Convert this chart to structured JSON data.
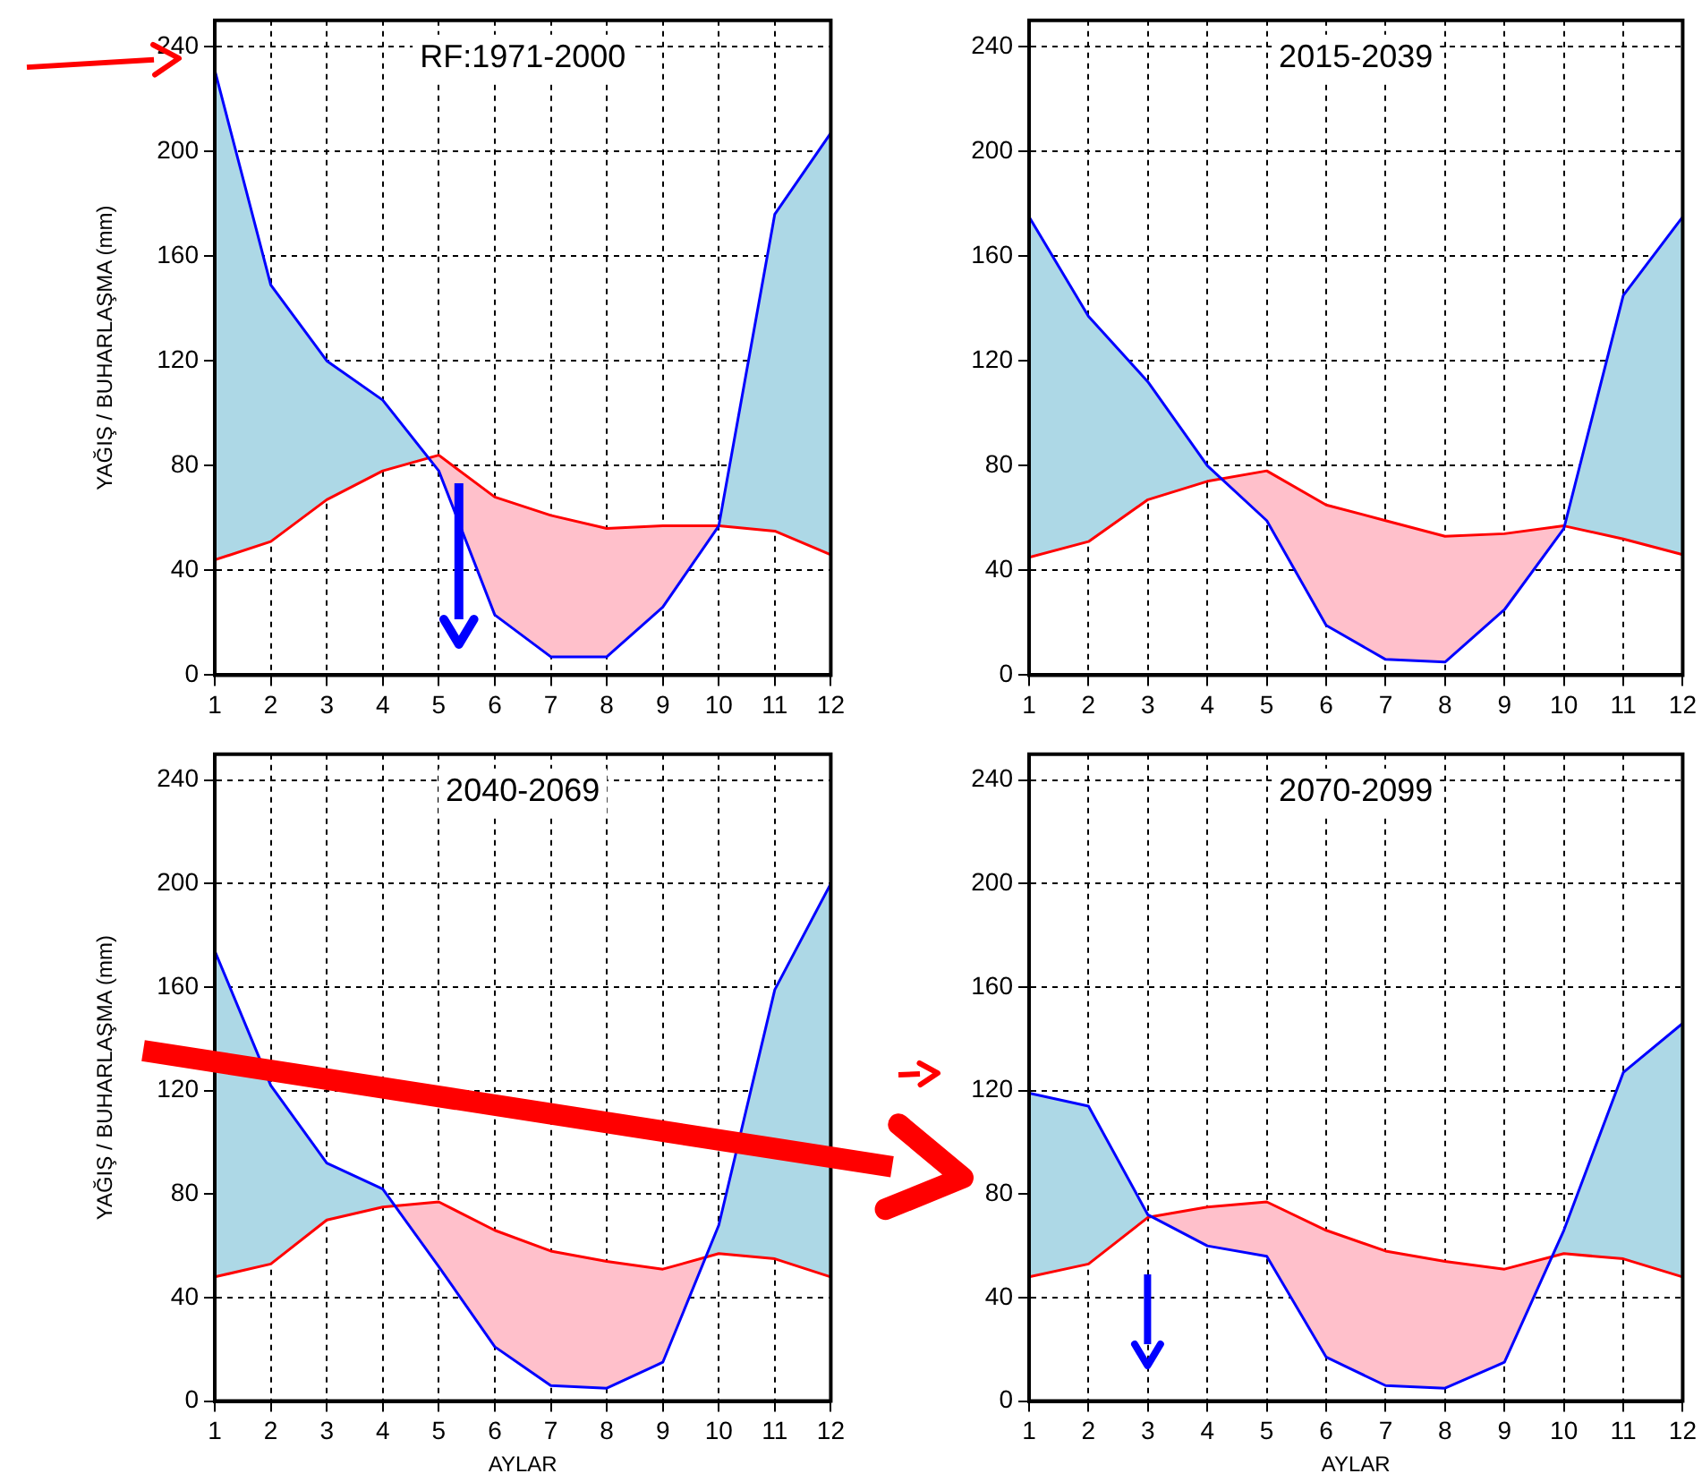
{
  "chart_data": [
    {
      "type": "line",
      "title": "RF:1971-2000",
      "ylabel": "YAĞIŞ / BUHARLAŞMA (mm)",
      "x": [
        1,
        2,
        3,
        4,
        5,
        6,
        7,
        8,
        9,
        10,
        11,
        12
      ],
      "xlim": [
        1,
        12
      ],
      "xticks": [
        1,
        2,
        3,
        4,
        5,
        6,
        7,
        8,
        9,
        10,
        11,
        12
      ],
      "ylim": [
        0,
        250
      ],
      "yticks": [
        0,
        40,
        80,
        120,
        160,
        200,
        240
      ],
      "grid": true,
      "marker": "none",
      "line_style": "solid",
      "series": [
        {
          "color": "#0000ff",
          "values": [
            231,
            149,
            120,
            105,
            78,
            23,
            7,
            7,
            26,
            57,
            176,
            207
          ]
        },
        {
          "color": "#ff0000",
          "values": [
            44,
            51,
            67,
            78,
            84,
            68,
            61,
            56,
            57,
            57,
            55,
            46
          ]
        }
      ]
    },
    {
      "type": "line",
      "title": "2015-2039",
      "x": [
        1,
        2,
        3,
        4,
        5,
        6,
        7,
        8,
        9,
        10,
        11,
        12
      ],
      "xlim": [
        1,
        12
      ],
      "xticks": [
        1,
        2,
        3,
        4,
        5,
        6,
        7,
        8,
        9,
        10,
        11,
        12
      ],
      "ylim": [
        0,
        250
      ],
      "yticks": [
        0,
        40,
        80,
        120,
        160,
        200,
        240
      ],
      "grid": true,
      "marker": "none",
      "line_style": "solid",
      "series": [
        {
          "color": "#0000ff",
          "values": [
            175,
            137,
            112,
            80,
            59,
            19,
            6,
            5,
            25,
            56,
            145,
            175
          ]
        },
        {
          "color": "#ff0000",
          "values": [
            45,
            51,
            67,
            74,
            78,
            65,
            59,
            53,
            54,
            57,
            52,
            46
          ]
        }
      ]
    },
    {
      "type": "line",
      "title": "2040-2069",
      "xlabel": "AYLAR",
      "ylabel": "YAĞIŞ / BUHARLAŞMA (mm)",
      "x": [
        1,
        2,
        3,
        4,
        5,
        6,
        7,
        8,
        9,
        10,
        11,
        12
      ],
      "xlim": [
        1,
        12
      ],
      "xticks": [
        1,
        2,
        3,
        4,
        5,
        6,
        7,
        8,
        9,
        10,
        11,
        12
      ],
      "ylim": [
        0,
        250
      ],
      "yticks": [
        0,
        40,
        80,
        120,
        160,
        200,
        240
      ],
      "grid": true,
      "marker": "none",
      "line_style": "solid",
      "series": [
        {
          "color": "#0000ff",
          "values": [
            174,
            122,
            92,
            82,
            52,
            21,
            6,
            5,
            15,
            68,
            159,
            200
          ]
        },
        {
          "color": "#ff0000",
          "values": [
            48,
            53,
            70,
            75,
            77,
            66,
            58,
            54,
            51,
            57,
            55,
            48
          ]
        }
      ]
    },
    {
      "type": "line",
      "title": "2070-2099",
      "xlabel": "AYLAR",
      "x": [
        1,
        2,
        3,
        4,
        5,
        6,
        7,
        8,
        9,
        10,
        11,
        12
      ],
      "xlim": [
        1,
        12
      ],
      "xticks": [
        1,
        2,
        3,
        4,
        5,
        6,
        7,
        8,
        9,
        10,
        11,
        12
      ],
      "ylim": [
        0,
        250
      ],
      "yticks": [
        0,
        40,
        80,
        120,
        160,
        200,
        240
      ],
      "grid": true,
      "marker": "none",
      "line_style": "solid",
      "series": [
        {
          "color": "#0000ff",
          "values": [
            119,
            114,
            72,
            60,
            56,
            17,
            6,
            5,
            15,
            66,
            127,
            146
          ]
        },
        {
          "color": "#ff0000",
          "values": [
            48,
            53,
            71,
            75,
            77,
            66,
            58,
            54,
            51,
            57,
            55,
            48
          ]
        }
      ]
    }
  ]
}
